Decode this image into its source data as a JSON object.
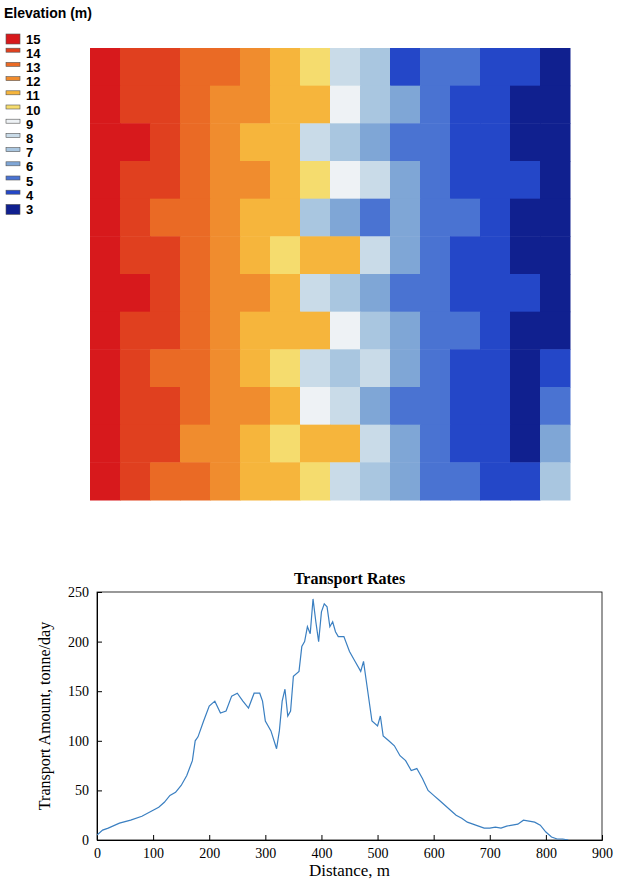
{
  "chart_data": [
    {
      "type": "heatmap",
      "title": "Elevation (m)",
      "tick_labels": false,
      "colorbar_ticks": [
        15,
        14,
        13,
        12,
        11,
        10,
        9,
        8,
        7,
        6,
        5,
        4,
        3
      ],
      "colors": [
        "#d7191c",
        "#e0401f",
        "#ea6a25",
        "#f08c2e",
        "#f6b53c",
        "#f5dc6e",
        "#eef2f5",
        "#c9dbe8",
        "#a9c6e0",
        "#7fa6d6",
        "#4a73d2",
        "#2447c8",
        "#10208f"
      ],
      "cells": [
        [
          15,
          14,
          14,
          13,
          13,
          12,
          11,
          10,
          8,
          7,
          4,
          5,
          5,
          4,
          4,
          3
        ],
        [
          15,
          14,
          14,
          13,
          12,
          12,
          11,
          11,
          9,
          7,
          6,
          5,
          4,
          4,
          3,
          3
        ],
        [
          15,
          15,
          14,
          13,
          12,
          11,
          11,
          8,
          7,
          6,
          5,
          5,
          4,
          4,
          3,
          3
        ],
        [
          15,
          14,
          14,
          13,
          12,
          12,
          11,
          10,
          9,
          8,
          6,
          5,
          4,
          4,
          4,
          3
        ],
        [
          15,
          14,
          13,
          13,
          12,
          11,
          11,
          7,
          6,
          5,
          6,
          5,
          5,
          4,
          3,
          3
        ],
        [
          15,
          14,
          14,
          13,
          12,
          11,
          10,
          11,
          11,
          8,
          6,
          5,
          4,
          4,
          3,
          3
        ],
        [
          15,
          15,
          14,
          13,
          12,
          12,
          11,
          8,
          7,
          6,
          5,
          5,
          4,
          4,
          4,
          3
        ],
        [
          15,
          14,
          14,
          13,
          12,
          11,
          11,
          11,
          9,
          7,
          6,
          5,
          5,
          4,
          3,
          3
        ],
        [
          15,
          14,
          13,
          13,
          12,
          11,
          10,
          8,
          7,
          8,
          6,
          5,
          4,
          4,
          3,
          4
        ],
        [
          15,
          14,
          14,
          13,
          12,
          12,
          11,
          9,
          8,
          6,
          5,
          5,
          4,
          4,
          3,
          5
        ],
        [
          15,
          14,
          14,
          12,
          12,
          11,
          10,
          11,
          11,
          8,
          6,
          5,
          4,
          4,
          3,
          6
        ],
        [
          15,
          14,
          13,
          13,
          12,
          11,
          11,
          10,
          8,
          7,
          6,
          5,
          5,
          4,
          4,
          7
        ]
      ]
    },
    {
      "type": "line",
      "title": "Transport Rates",
      "x_label": "Distance, m",
      "y_label": "Transport Amount, tonne/day",
      "color": "#3a7fc1",
      "xlim": [
        0,
        900
      ],
      "ylim": [
        0,
        250
      ],
      "xticks": [
        0,
        100,
        200,
        300,
        400,
        500,
        600,
        700,
        800,
        900
      ],
      "yticks": [
        0,
        50,
        100,
        150,
        200,
        250
      ],
      "x": [
        0,
        10,
        20,
        40,
        60,
        80,
        100,
        110,
        120,
        130,
        140,
        150,
        160,
        170,
        175,
        180,
        190,
        200,
        210,
        220,
        230,
        240,
        250,
        260,
        270,
        280,
        290,
        295,
        300,
        310,
        320,
        325,
        330,
        335,
        340,
        345,
        350,
        360,
        365,
        370,
        375,
        380,
        385,
        390,
        395,
        400,
        405,
        410,
        415,
        420,
        425,
        430,
        440,
        450,
        460,
        470,
        475,
        480,
        490,
        500,
        505,
        510,
        520,
        530,
        540,
        550,
        560,
        570,
        580,
        590,
        600,
        610,
        620,
        630,
        640,
        650,
        660,
        670,
        680,
        690,
        700,
        710,
        720,
        730,
        740,
        750,
        760,
        770,
        780,
        790,
        800,
        810,
        820,
        830,
        840
      ],
      "values": [
        5,
        10,
        12,
        17,
        20,
        24,
        30,
        33,
        38,
        45,
        48,
        55,
        65,
        80,
        100,
        104,
        120,
        135,
        140,
        128,
        130,
        145,
        148,
        140,
        133,
        148,
        148,
        140,
        120,
        110,
        92,
        110,
        140,
        152,
        125,
        130,
        165,
        170,
        195,
        200,
        215,
        208,
        243,
        220,
        200,
        230,
        238,
        235,
        215,
        220,
        210,
        205,
        205,
        190,
        180,
        170,
        180,
        160,
        120,
        115,
        125,
        105,
        100,
        95,
        85,
        80,
        70,
        72,
        62,
        50,
        45,
        40,
        35,
        30,
        25,
        22,
        18,
        16,
        14,
        12,
        12,
        13,
        12,
        14,
        15,
        16,
        20,
        19,
        18,
        15,
        8,
        3,
        1,
        1,
        0
      ]
    }
  ]
}
